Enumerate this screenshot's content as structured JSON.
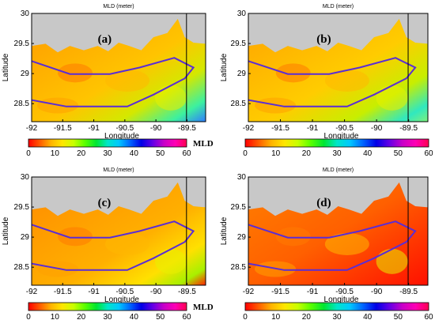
{
  "colors": {
    "land": "#c8c8c8",
    "transect": "#5a2dd6",
    "colorbar": [
      "#ff0000",
      "#ff5a00",
      "#ffb400",
      "#ffe600",
      "#c8ff00",
      "#5aff00",
      "#00e632",
      "#00e6c8",
      "#00c8ff",
      "#0064ff",
      "#0000e6",
      "#6400e6",
      "#c800c8",
      "#ff00b4",
      "#ff0050"
    ]
  },
  "axis": {
    "xlabel": "Longitude",
    "ylabel": "Latitude",
    "x_ticks": [
      "-92",
      "-91.5",
      "-91",
      "-90.5",
      "-90",
      "-89.5"
    ],
    "y_ticks": [
      "30",
      "29.5",
      "29",
      "28.5"
    ],
    "xlim": [
      -92,
      -89.2
    ],
    "ylim": [
      28.2,
      30
    ]
  },
  "colorbar": {
    "ticks": [
      "0",
      "10",
      "20",
      "30",
      "40",
      "50",
      "60"
    ],
    "range": [
      0,
      60
    ]
  },
  "panels": [
    {
      "id": "a",
      "label": "(a)",
      "title": "MLD (meter)",
      "colorbar_label": "MLD (m)"
    },
    {
      "id": "b",
      "label": "(b)",
      "title": "MLD (meter)",
      "colorbar_label": ""
    },
    {
      "id": "c",
      "label": "(c)",
      "title": "MLD (meter)",
      "colorbar_label": "MLD (m)"
    },
    {
      "id": "d",
      "label": "(d)",
      "title": "MLD (meter)",
      "colorbar_label": ""
    }
  ]
}
